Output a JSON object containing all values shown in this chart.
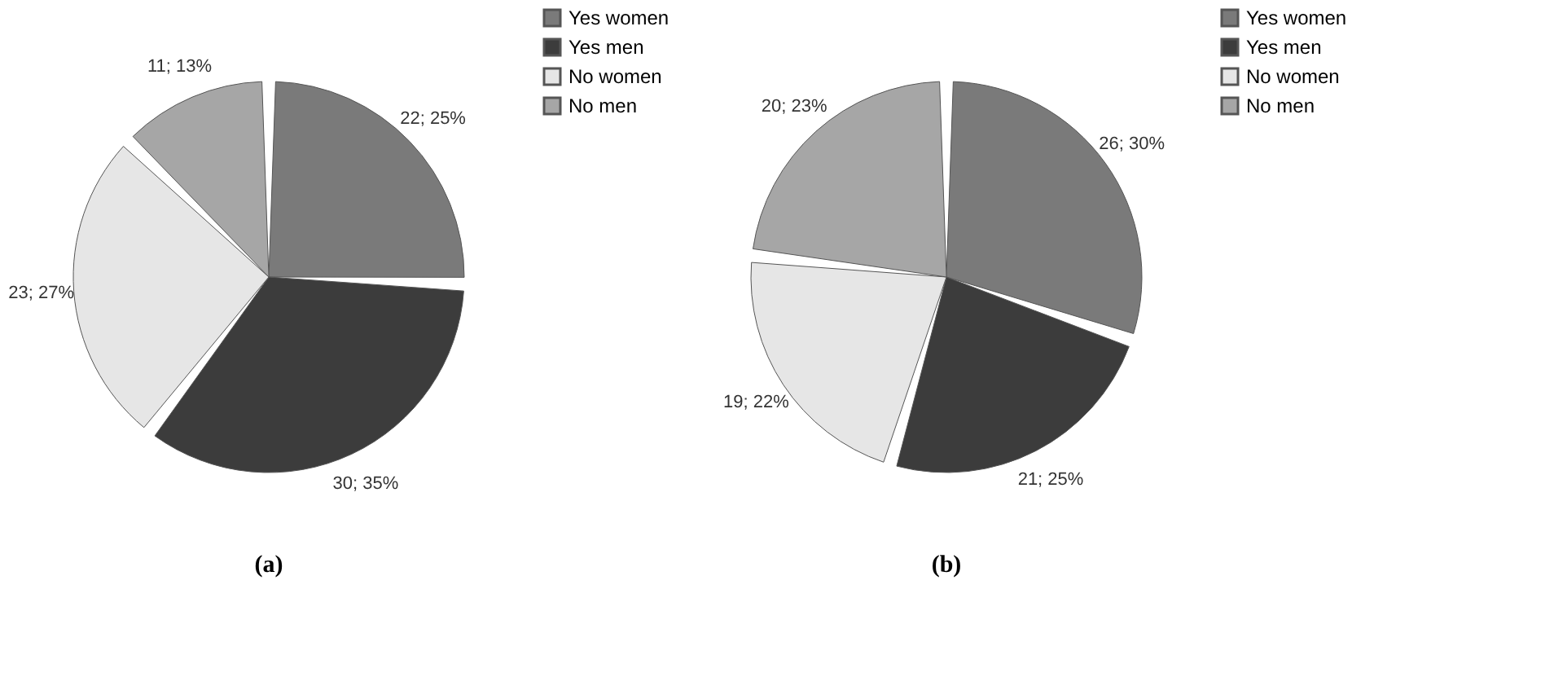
{
  "chart_data": [
    {
      "type": "pie",
      "title": "(a)",
      "categories": [
        "Yes women",
        "Yes men",
        "No women",
        "No men"
      ],
      "values": [
        22,
        30,
        23,
        11
      ],
      "value_labels": [
        "22; 25%",
        "30; 35%",
        "23; 27%",
        "11; 13%"
      ],
      "colors": [
        "#7a7a7a",
        "#3c3c3c",
        "#e6e6e6",
        "#a6a6a6"
      ],
      "legend": "right"
    },
    {
      "type": "pie",
      "title": "(b)",
      "categories": [
        "Yes women",
        "Yes men",
        "No women",
        "No men"
      ],
      "values": [
        26,
        21,
        19,
        20
      ],
      "value_labels": [
        "26; 30%",
        "21; 25%",
        "19; 22%",
        "20; 23%"
      ],
      "colors": [
        "#7a7a7a",
        "#3c3c3c",
        "#e6e6e6",
        "#a6a6a6"
      ],
      "legend": "right"
    }
  ]
}
